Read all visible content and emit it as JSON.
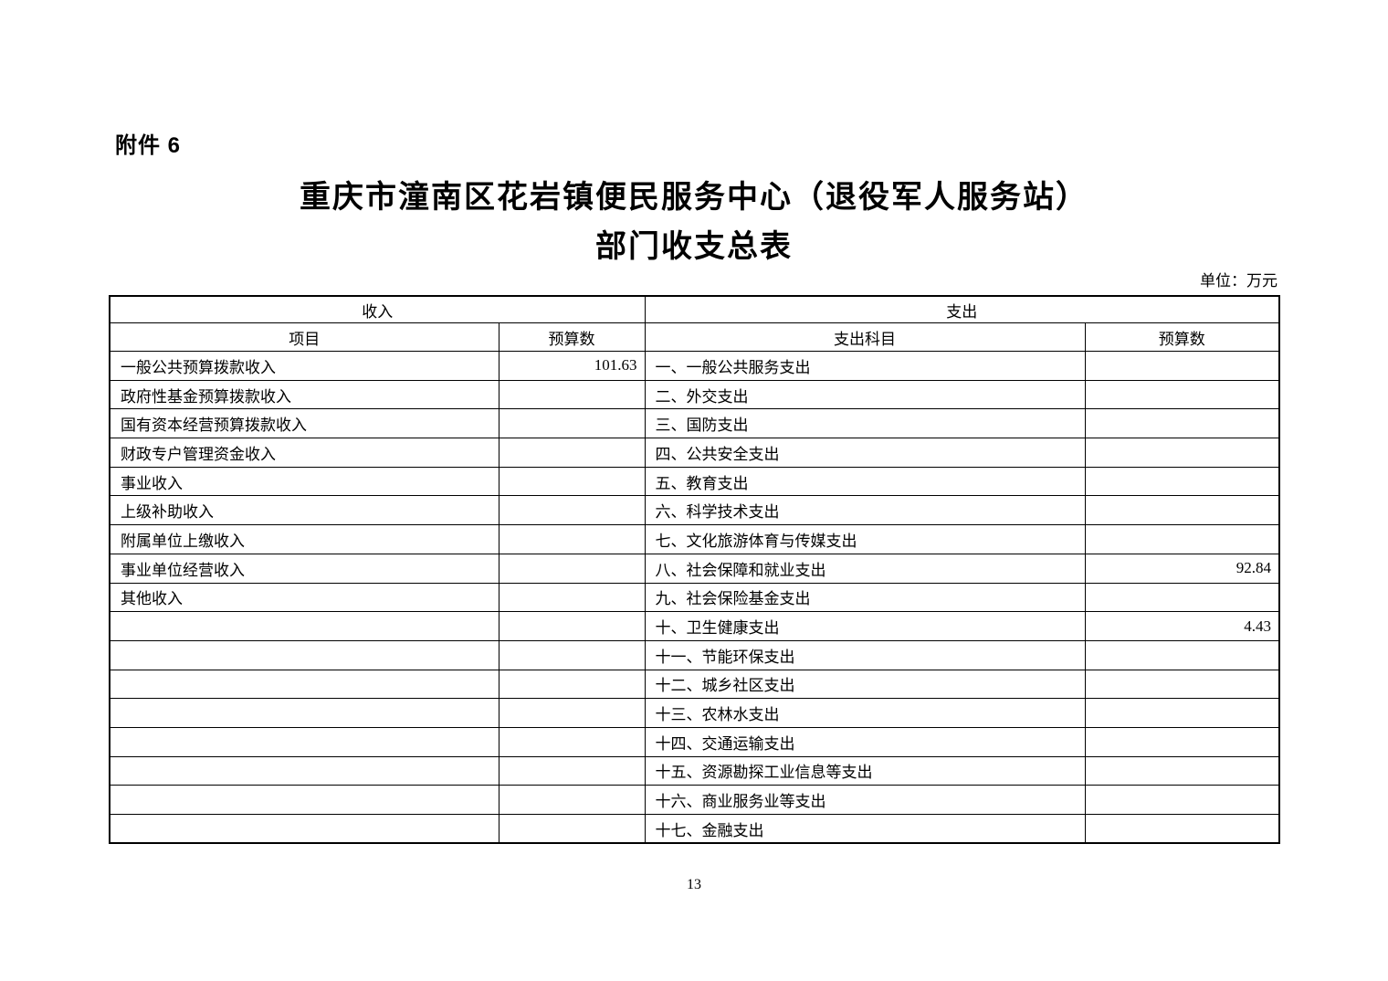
{
  "attachment_label": "附件 6",
  "title_line1": "重庆市潼南区花岩镇便民服务中心（退役军人服务站）",
  "title_line2": "部门收支总表",
  "unit_label": "单位：万元",
  "page_number": "13",
  "table": {
    "income_section_header": "收入",
    "expense_section_header": "支出",
    "income_item_col_header": "项目",
    "income_budget_col_header": "预算数",
    "expense_item_col_header": "支出科目",
    "expense_budget_col_header": "预算数",
    "rows": [
      {
        "income_item": "一般公共预算拨款收入",
        "income_budget": "101.63",
        "expense_item": "一、一般公共服务支出",
        "expense_budget": ""
      },
      {
        "income_item": "政府性基金预算拨款收入",
        "income_budget": "",
        "expense_item": "二、外交支出",
        "expense_budget": ""
      },
      {
        "income_item": "国有资本经营预算拨款收入",
        "income_budget": "",
        "expense_item": "三、国防支出",
        "expense_budget": ""
      },
      {
        "income_item": "财政专户管理资金收入",
        "income_budget": "",
        "expense_item": "四、公共安全支出",
        "expense_budget": ""
      },
      {
        "income_item": "事业收入",
        "income_budget": "",
        "expense_item": "五、教育支出",
        "expense_budget": ""
      },
      {
        "income_item": "上级补助收入",
        "income_budget": "",
        "expense_item": "六、科学技术支出",
        "expense_budget": ""
      },
      {
        "income_item": "附属单位上缴收入",
        "income_budget": "",
        "expense_item": "七、文化旅游体育与传媒支出",
        "expense_budget": ""
      },
      {
        "income_item": "事业单位经营收入",
        "income_budget": "",
        "expense_item": "八、社会保障和就业支出",
        "expense_budget": "92.84"
      },
      {
        "income_item": "其他收入",
        "income_budget": "",
        "expense_item": "九、社会保险基金支出",
        "expense_budget": ""
      },
      {
        "income_item": "",
        "income_budget": "",
        "expense_item": "十、卫生健康支出",
        "expense_budget": "4.43"
      },
      {
        "income_item": "",
        "income_budget": "",
        "expense_item": "十一、节能环保支出",
        "expense_budget": ""
      },
      {
        "income_item": "",
        "income_budget": "",
        "expense_item": "十二、城乡社区支出",
        "expense_budget": ""
      },
      {
        "income_item": "",
        "income_budget": "",
        "expense_item": "十三、农林水支出",
        "expense_budget": ""
      },
      {
        "income_item": "",
        "income_budget": "",
        "expense_item": "十四、交通运输支出",
        "expense_budget": ""
      },
      {
        "income_item": "",
        "income_budget": "",
        "expense_item": "十五、资源勘探工业信息等支出",
        "expense_budget": ""
      },
      {
        "income_item": "",
        "income_budget": "",
        "expense_item": "十六、商业服务业等支出",
        "expense_budget": ""
      },
      {
        "income_item": "",
        "income_budget": "",
        "expense_item": "十七、金融支出",
        "expense_budget": ""
      }
    ]
  }
}
